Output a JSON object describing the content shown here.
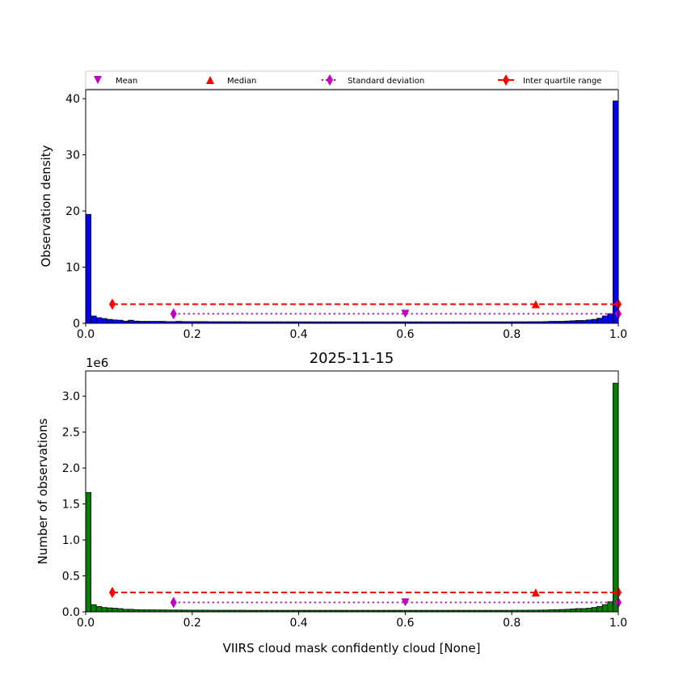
{
  "chart_data": [
    {
      "type": "bar",
      "title": "",
      "xlabel": "",
      "ylabel": "Observation density",
      "xlim": [
        0,
        1
      ],
      "ylim": [
        0,
        41.6
      ],
      "xticks": [
        "0.0",
        "0.2",
        "0.4",
        "0.6",
        "0.8",
        "1.0"
      ],
      "yticks": [
        "0",
        "10",
        "20",
        "30",
        "40"
      ],
      "ytick_values": [
        0,
        10,
        20,
        30,
        40
      ],
      "bin_width": 0.01,
      "bar_color": "#0000ff",
      "values": [
        19.4,
        1.3,
        1.0,
        0.85,
        0.7,
        0.6,
        0.55,
        0.4,
        0.55,
        0.4,
        0.35,
        0.35,
        0.35,
        0.35,
        0.35,
        0.3,
        0.3,
        0.35,
        0.3,
        0.3,
        0.3,
        0.3,
        0.3,
        0.28,
        0.28,
        0.28,
        0.28,
        0.28,
        0.28,
        0.28,
        0.27,
        0.27,
        0.27,
        0.27,
        0.27,
        0.27,
        0.27,
        0.27,
        0.27,
        0.27,
        0.26,
        0.26,
        0.26,
        0.26,
        0.26,
        0.26,
        0.26,
        0.26,
        0.26,
        0.26,
        0.26,
        0.26,
        0.26,
        0.26,
        0.26,
        0.26,
        0.26,
        0.26,
        0.26,
        0.26,
        0.26,
        0.26,
        0.26,
        0.26,
        0.26,
        0.26,
        0.26,
        0.26,
        0.26,
        0.26,
        0.26,
        0.26,
        0.26,
        0.26,
        0.26,
        0.26,
        0.26,
        0.26,
        0.26,
        0.26,
        0.27,
        0.27,
        0.27,
        0.28,
        0.28,
        0.28,
        0.3,
        0.35,
        0.35,
        0.35,
        0.4,
        0.45,
        0.5,
        0.5,
        0.6,
        0.7,
        0.9,
        1.3,
        1.7,
        39.6
      ],
      "stats": {
        "mean": {
          "x": 0.6,
          "y": 1.7
        },
        "median": {
          "x": 0.845,
          "y": 3.4
        },
        "std": {
          "x": [
            0.165,
            1.0
          ],
          "y": 1.7
        },
        "iqr": {
          "x": [
            0.05,
            1.0
          ],
          "y": 3.4
        }
      }
    },
    {
      "type": "bar",
      "title": "2025-11-15",
      "xlabel": "VIIRS cloud mask confidently cloud [None]",
      "ylabel": "Number of observations",
      "offset_label": "1e6",
      "xlim": [
        0,
        1
      ],
      "ylim": [
        0,
        3.35
      ],
      "xticks": [
        "0.0",
        "0.2",
        "0.4",
        "0.6",
        "0.8",
        "1.0"
      ],
      "yticks": [
        "0.0",
        "0.5",
        "1.0",
        "1.5",
        "2.0",
        "2.5",
        "3.0"
      ],
      "ytick_values": [
        0,
        0.5,
        1,
        1.5,
        2,
        2.5,
        3
      ],
      "bin_width": 0.01,
      "bar_color": "#008000",
      "values": [
        1.66,
        0.1,
        0.075,
        0.06,
        0.055,
        0.05,
        0.045,
        0.035,
        0.035,
        0.03,
        0.028,
        0.027,
        0.027,
        0.026,
        0.026,
        0.025,
        0.025,
        0.025,
        0.024,
        0.024,
        0.023,
        0.023,
        0.023,
        0.022,
        0.022,
        0.022,
        0.022,
        0.022,
        0.022,
        0.022,
        0.021,
        0.021,
        0.021,
        0.021,
        0.021,
        0.021,
        0.021,
        0.021,
        0.021,
        0.021,
        0.021,
        0.021,
        0.021,
        0.021,
        0.021,
        0.021,
        0.021,
        0.021,
        0.021,
        0.021,
        0.021,
        0.021,
        0.021,
        0.021,
        0.021,
        0.021,
        0.021,
        0.021,
        0.021,
        0.021,
        0.021,
        0.021,
        0.021,
        0.021,
        0.021,
        0.021,
        0.021,
        0.021,
        0.021,
        0.021,
        0.021,
        0.021,
        0.021,
        0.021,
        0.021,
        0.021,
        0.021,
        0.021,
        0.021,
        0.021,
        0.022,
        0.022,
        0.022,
        0.023,
        0.023,
        0.024,
        0.025,
        0.028,
        0.03,
        0.032,
        0.035,
        0.04,
        0.045,
        0.045,
        0.05,
        0.06,
        0.075,
        0.1,
        0.14,
        3.18
      ],
      "stats": {
        "mean": {
          "x": 0.6,
          "y": 0.13
        },
        "median": {
          "x": 0.845,
          "y": 0.27
        },
        "std": {
          "x": [
            0.165,
            1.0
          ],
          "y": 0.13
        },
        "iqr": {
          "x": [
            0.05,
            1.0
          ],
          "y": 0.27
        }
      }
    }
  ],
  "legend": {
    "placement": "top",
    "items": [
      "Mean",
      "Median",
      "Standard deviation",
      "Inter quartile range"
    ],
    "colors": {
      "mean": "#bf00bf",
      "median": "#ff0000",
      "std": "#bf00bf",
      "iqr": "#ff0000"
    }
  }
}
